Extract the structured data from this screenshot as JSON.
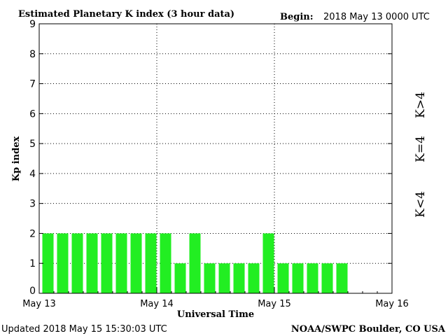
{
  "header": {
    "title": "Estimated Planetary K index (3 hour data)",
    "begin_label": "Begin:",
    "begin_value": "2018 May 13 0000 UTC"
  },
  "footer": {
    "updated": "Updated 2018 May 15 15:30:03 UTC",
    "source": "NOAA/SWPC Boulder, CO USA"
  },
  "legend": {
    "high": "K>4",
    "mid": "K=4",
    "low": "K<4"
  },
  "colors": {
    "low": "#22ee22",
    "mid": "#ffcc00",
    "high": "#ff2200",
    "bar": "#22ee22",
    "grid": "#000000"
  },
  "chart_data": {
    "type": "bar",
    "title": "Estimated Planetary K index (3 hour data)",
    "xlabel": "Universal Time",
    "ylabel": "Kp index",
    "ylim": [
      0,
      9
    ],
    "yticks": [
      "0",
      "1",
      "2",
      "3",
      "4",
      "5",
      "6",
      "7",
      "8",
      "9"
    ],
    "xticks": [
      "May 13",
      "May 14",
      "May 15",
      "May 16"
    ],
    "bar_interval_hours": 3,
    "grid": true,
    "values": [
      2,
      2,
      2,
      2,
      2,
      2,
      2,
      2,
      2,
      1,
      2,
      1,
      1,
      1,
      1,
      2,
      1,
      1,
      1,
      1,
      1
    ]
  }
}
